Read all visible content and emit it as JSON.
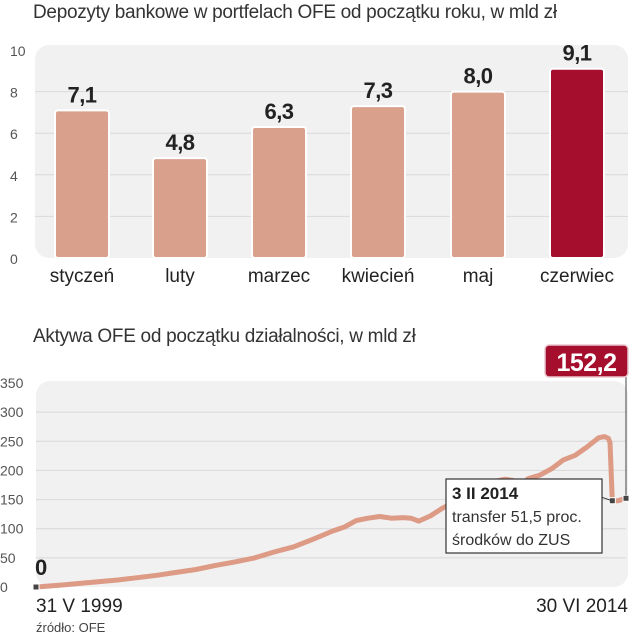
{
  "chart_data": [
    {
      "type": "bar",
      "title": "Depozyty bankowe w portfelach OFE od początku roku, w mld zł",
      "categories": [
        "styczeń",
        "luty",
        "marzec",
        "kwiecień",
        "maj",
        "czerwiec"
      ],
      "values": [
        7.1,
        4.8,
        6.3,
        7.3,
        8.0,
        9.1
      ],
      "value_labels": [
        "7,1",
        "4,8",
        "6,3",
        "7,3",
        "8,0",
        "9,1"
      ],
      "highlight_index": 5,
      "ylim": [
        0,
        10
      ],
      "yticks": [
        0,
        2,
        4,
        6,
        8,
        10
      ],
      "grid": true,
      "xlabel": "",
      "ylabel": "",
      "colors": {
        "bar": "#d9a08b",
        "highlight": "#a50e2d",
        "plot_bg": "#f1f1f2",
        "grid": "#d8d8da"
      }
    },
    {
      "type": "line",
      "title": "Aktywa OFE od początku działalności, w mld zł",
      "x_start_label": "31 V 1999",
      "x_end_label": "30 VI 2014",
      "x_range": [
        1999.41,
        2014.5
      ],
      "ylim": [
        0,
        350
      ],
      "yticks": [
        0,
        50,
        100,
        150,
        200,
        250,
        300,
        350
      ],
      "grid": true,
      "series": [
        {
          "name": "Aktywa OFE",
          "x": [
            1999.41,
            2000.0,
            2000.5,
            2001.0,
            2001.5,
            2002.0,
            2002.5,
            2003.0,
            2003.5,
            2004.0,
            2004.5,
            2005.0,
            2005.5,
            2006.0,
            2006.5,
            2007.0,
            2007.3,
            2007.6,
            2007.9,
            2008.2,
            2008.5,
            2008.8,
            2009.0,
            2009.2,
            2009.5,
            2009.8,
            2010.0,
            2010.3,
            2010.6,
            2010.9,
            2011.2,
            2011.4,
            2011.6,
            2011.8,
            2012.0,
            2012.3,
            2012.6,
            2012.9,
            2013.2,
            2013.5,
            2013.8,
            2013.95,
            2014.05,
            2014.09,
            2014.15,
            2014.3,
            2014.5
          ],
          "values": [
            0,
            3,
            6,
            9,
            12,
            16,
            20,
            25,
            30,
            37,
            43,
            50,
            60,
            69,
            82,
            96,
            103,
            114,
            118,
            121,
            118,
            119,
            118,
            113,
            122,
            135,
            142,
            152,
            160,
            172,
            182,
            185,
            183,
            175,
            186,
            192,
            203,
            218,
            226,
            240,
            256,
            258,
            255,
            248,
            148,
            148,
            152.2
          ]
        }
      ],
      "start_label": "0",
      "end_value_label": "152,2",
      "annotation": {
        "date": "3 II 2014",
        "text_line1": "transfer 51,5 proc.",
        "text_line2": "środków do ZUS"
      },
      "colors": {
        "line": "#dd9a85",
        "badge": "#a50e2d",
        "plot_bg": "#f1f1f2",
        "grid": "#d8d8da"
      }
    }
  ],
  "source": "źródło: OFE"
}
